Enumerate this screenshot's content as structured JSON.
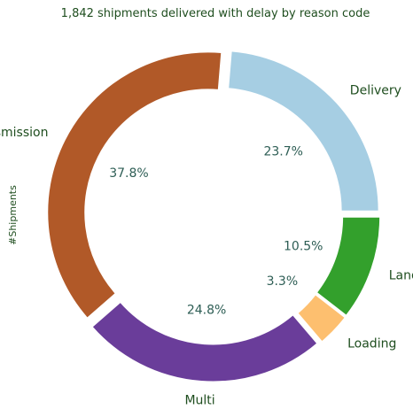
{
  "chart_data": {
    "type": "pie",
    "title": "1,842 shipments delivered with delay by reason code",
    "ylabel": "#Shipments",
    "categories": [
      "Delivery",
      "Transmission",
      "Multi",
      "Loading",
      "Landing"
    ],
    "values": [
      23.7,
      37.8,
      24.8,
      3.3,
      10.5
    ],
    "value_labels": [
      "23.7%",
      "37.8%",
      "24.8%",
      "3.3%",
      "10.5%"
    ],
    "colors": [
      "#a6cee3",
      "#b15928",
      "#6a3d9a",
      "#fdbf6f",
      "#33a02c"
    ],
    "style": "donut",
    "legend": "none"
  }
}
